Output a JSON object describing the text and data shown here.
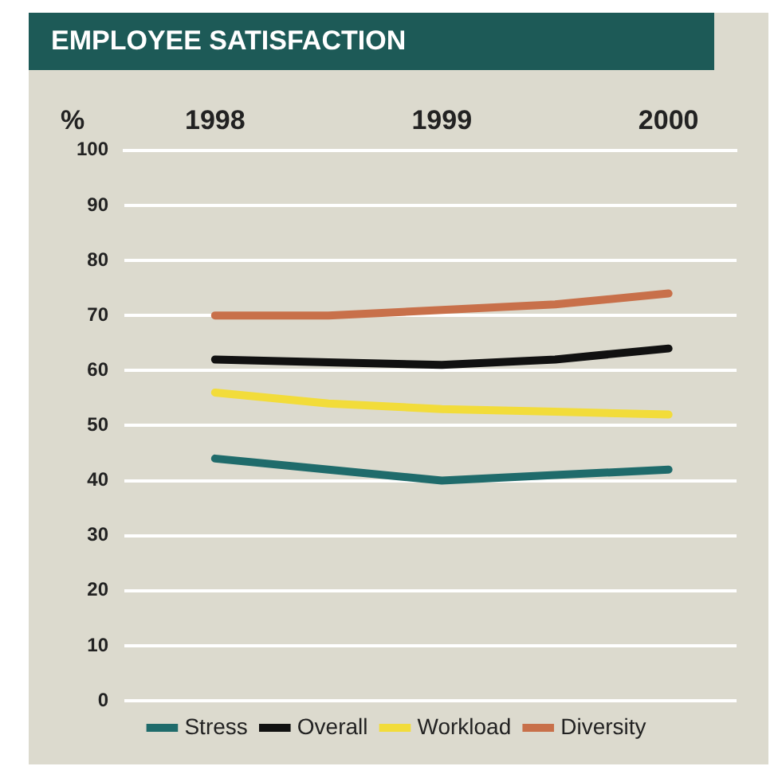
{
  "chart_data": {
    "type": "line",
    "title": "EMPLOYEE SATISFACTION",
    "ylabel": "%",
    "x": [
      1998,
      1998.5,
      1999,
      1999.5,
      2000
    ],
    "xlim": [
      1997.6,
      2000.3
    ],
    "xticks": [
      1998,
      1999,
      2000
    ],
    "ylim": [
      0,
      100
    ],
    "yticks": [
      0,
      10,
      20,
      30,
      40,
      50,
      60,
      70,
      80,
      90,
      100
    ],
    "grid": "y",
    "legend": "bottom",
    "marker": "none",
    "line_style": "solid",
    "series": [
      {
        "name": "Stress",
        "color": "#1f6b6b",
        "values": [
          44,
          42,
          40,
          41,
          42
        ]
      },
      {
        "name": "Overall",
        "color": "#111111",
        "values": [
          62,
          61.5,
          61,
          62,
          64
        ]
      },
      {
        "name": "Workload",
        "color": "#f2dc3a",
        "values": [
          56,
          54,
          53,
          52.5,
          52
        ]
      },
      {
        "name": "Diversity",
        "color": "#c8704a",
        "values": [
          70,
          70,
          71,
          72,
          74
        ]
      }
    ]
  }
}
